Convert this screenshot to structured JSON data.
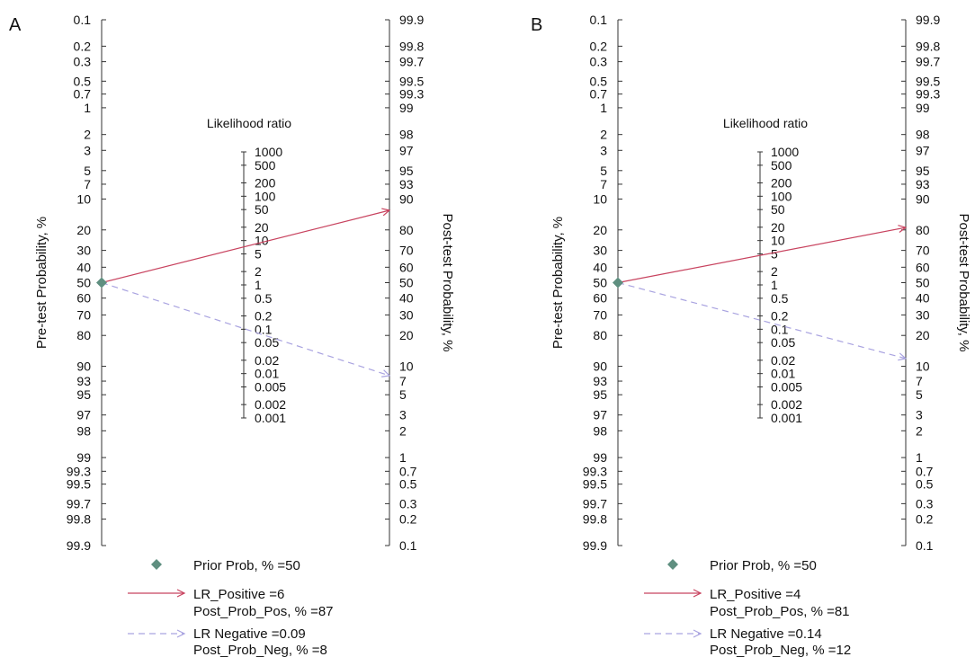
{
  "chart_data": [
    {
      "type": "nomogram",
      "panel_label": "A",
      "left_axis_label": "Pre-test Probability, %",
      "right_axis_label": "Post-test Probability, %",
      "middle_axis_title": "Likelihood ratio",
      "pre_ticks": [
        "0.1",
        "0.2",
        "0.3",
        "0.5",
        "0.7",
        "1",
        "2",
        "3",
        "5",
        "7",
        "10",
        "20",
        "30",
        "40",
        "50",
        "60",
        "70",
        "80",
        "90",
        "93",
        "95",
        "97",
        "98",
        "99",
        "99.3",
        "99.5",
        "99.7",
        "99.8",
        "99.9"
      ],
      "post_ticks": [
        "99.9",
        "99.8",
        "99.7",
        "99.5",
        "99.3",
        "99",
        "98",
        "97",
        "95",
        "93",
        "90",
        "80",
        "70",
        "60",
        "50",
        "40",
        "30",
        "20",
        "10",
        "7",
        "5",
        "3",
        "2",
        "1",
        "0.7",
        "0.5",
        "0.3",
        "0.2",
        "0.1"
      ],
      "lr_ticks": [
        "1000",
        "500",
        "200",
        "100",
        "50",
        "20",
        "10",
        "5",
        "2",
        "1",
        "0.5",
        "0.2",
        "0.1",
        "0.05",
        "0.02",
        "0.01",
        "0.005",
        "0.002",
        "0.001"
      ],
      "prior_prob": 50,
      "lr_positive": 6,
      "post_prob_pos": 87,
      "lr_negative": 0.09,
      "post_prob_neg": 8,
      "legend": {
        "prior": "Prior Prob, % =50",
        "pos_line1": "LR_Positive =6",
        "pos_line2": "Post_Prob_Pos, % =87",
        "neg_line1": "LR Negative =0.09",
        "neg_line2": "Post_Prob_Neg, % =8"
      },
      "colors": {
        "positive": "#c8435f",
        "negative": "#a9a3e0",
        "prior_marker": "#5f8f80",
        "axis": "#333333"
      }
    },
    {
      "type": "nomogram",
      "panel_label": "B",
      "left_axis_label": "Pre-test Probability, %",
      "right_axis_label": "Post-test Probability, %",
      "middle_axis_title": "Likelihood ratio",
      "pre_ticks": [
        "0.1",
        "0.2",
        "0.3",
        "0.5",
        "0.7",
        "1",
        "2",
        "3",
        "5",
        "7",
        "10",
        "20",
        "30",
        "40",
        "50",
        "60",
        "70",
        "80",
        "90",
        "93",
        "95",
        "97",
        "98",
        "99",
        "99.3",
        "99.5",
        "99.7",
        "99.8",
        "99.9"
      ],
      "post_ticks": [
        "99.9",
        "99.8",
        "99.7",
        "99.5",
        "99.3",
        "99",
        "98",
        "97",
        "95",
        "93",
        "90",
        "80",
        "70",
        "60",
        "50",
        "40",
        "30",
        "20",
        "10",
        "7",
        "5",
        "3",
        "2",
        "1",
        "0.7",
        "0.5",
        "0.3",
        "0.2",
        "0.1"
      ],
      "lr_ticks": [
        "1000",
        "500",
        "200",
        "100",
        "50",
        "20",
        "10",
        "5",
        "2",
        "1",
        "0.5",
        "0.2",
        "0.1",
        "0.05",
        "0.02",
        "0.01",
        "0.005",
        "0.002",
        "0.001"
      ],
      "prior_prob": 50,
      "lr_positive": 4,
      "post_prob_pos": 81,
      "lr_negative": 0.14,
      "post_prob_neg": 12,
      "legend": {
        "prior": "Prior Prob, % =50",
        "pos_line1": "LR_Positive =4",
        "pos_line2": "Post_Prob_Pos, % =81",
        "neg_line1": "LR Negative =0.14",
        "neg_line2": "Post_Prob_Neg, % =12"
      },
      "colors": {
        "positive": "#c8435f",
        "negative": "#a9a3e0",
        "prior_marker": "#5f8f80",
        "axis": "#333333"
      }
    }
  ]
}
